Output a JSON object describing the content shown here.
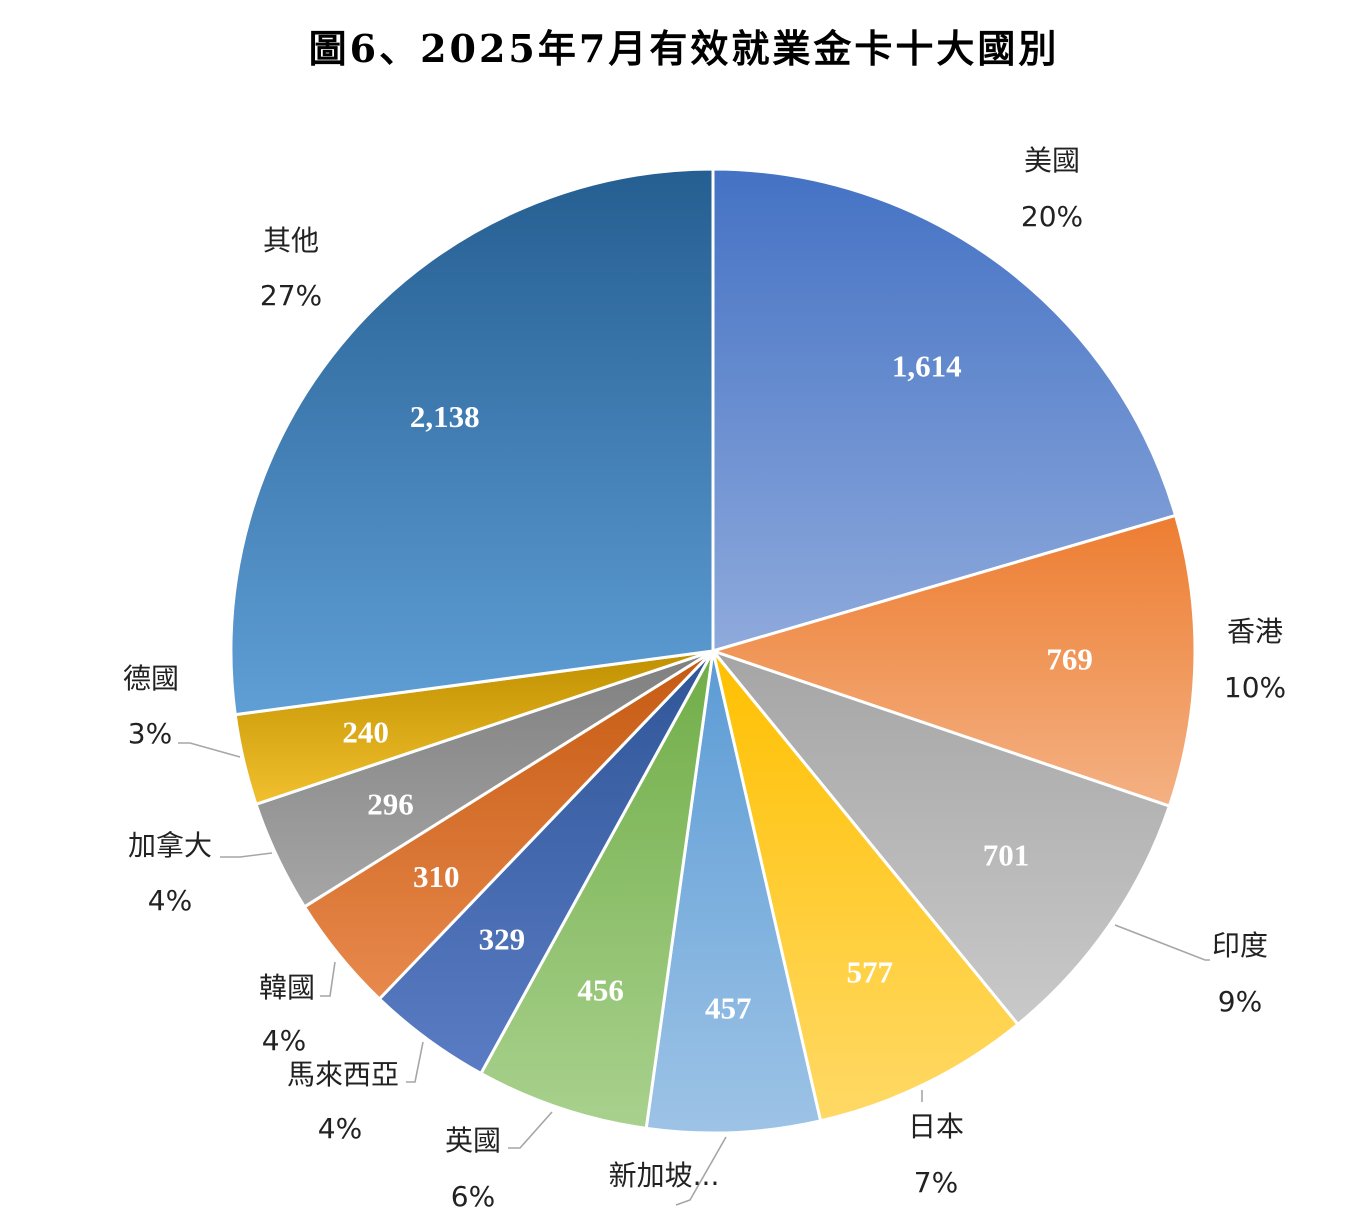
{
  "chart_data": {
    "type": "pie",
    "title": "圖6、2025年7月有效就業金卡十大國別",
    "slices": [
      {
        "name": "美國",
        "value": 1614,
        "value_label": "1,614",
        "percent_label": "20%",
        "color": "#4472c4",
        "color_light": "#8faadc"
      },
      {
        "name": "香港",
        "value": 769,
        "value_label": "769",
        "percent_label": "10%",
        "color": "#ed7d31",
        "color_light": "#f4b183"
      },
      {
        "name": "印度",
        "value": 701,
        "value_label": "701",
        "percent_label": "9%",
        "color": "#a5a5a5",
        "color_light": "#c9c9c9"
      },
      {
        "name": "日本",
        "value": 577,
        "value_label": "577",
        "percent_label": "7%",
        "color": "#ffc000",
        "color_light": "#ffd966"
      },
      {
        "name": "新加坡...",
        "value": 457,
        "value_label": "457",
        "percent_label": "",
        "color": "#5b9bd5",
        "color_light": "#9dc3e6"
      },
      {
        "name": "英國",
        "value": 456,
        "value_label": "456",
        "percent_label": "6%",
        "color": "#70ad47",
        "color_light": "#a9d18e"
      },
      {
        "name": "馬來西亞",
        "value": 329,
        "value_label": "329",
        "percent_label": "4%",
        "color": "#2f5597",
        "color_light": "#5a7cc4"
      },
      {
        "name": "韓國",
        "value": 310,
        "value_label": "310",
        "percent_label": "4%",
        "color": "#c55a11",
        "color_light": "#e8894d"
      },
      {
        "name": "加拿大",
        "value": 296,
        "value_label": "296",
        "percent_label": "4%",
        "color": "#7f7f7f",
        "color_light": "#a6a6a6"
      },
      {
        "name": "德國",
        "value": 240,
        "value_label": "240",
        "percent_label": "3%",
        "color": "#bf9000",
        "color_light": "#f2c02e"
      },
      {
        "name": "其他",
        "value": 2138,
        "value_label": "2,138",
        "percent_label": "27%",
        "color": "#255e91",
        "color_light": "#5f9fd6"
      }
    ],
    "legend": "none"
  }
}
